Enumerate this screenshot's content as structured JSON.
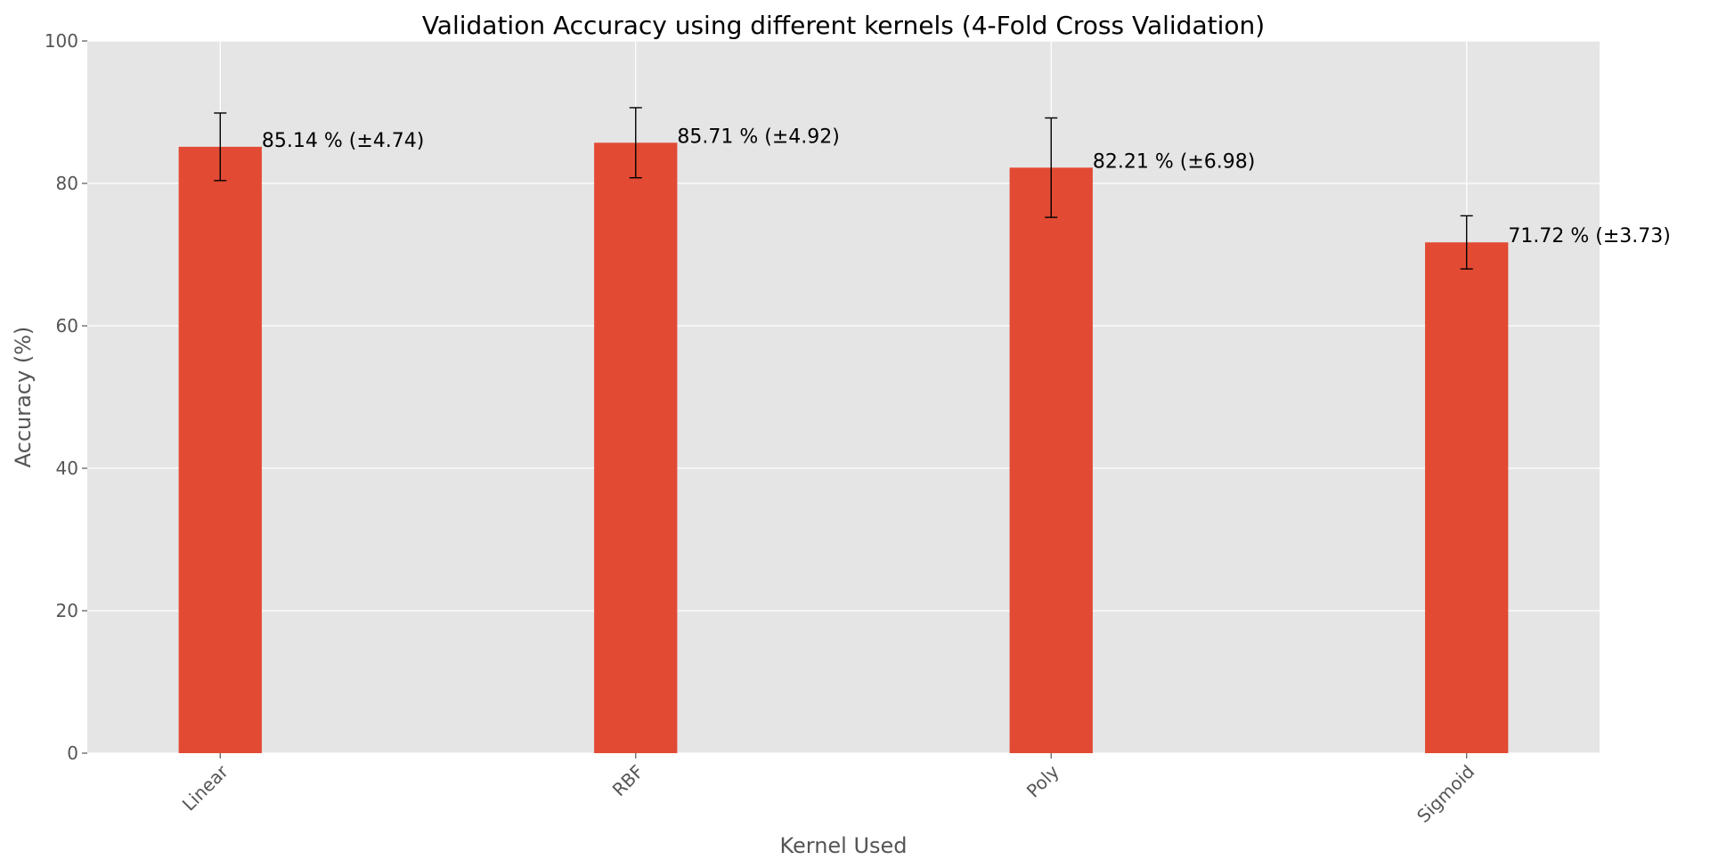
{
  "chart_data": {
    "type": "bar",
    "title": "Validation Accuracy using different kernels (4-Fold Cross Validation)",
    "xlabel": "Kernel Used",
    "ylabel": "Accuracy (%)",
    "categories": [
      "Linear",
      "RBF",
      "Poly",
      "Sigmoid"
    ],
    "values": [
      85.14,
      85.71,
      82.21,
      71.72
    ],
    "errors": [
      4.74,
      4.92,
      6.98,
      3.73
    ],
    "data_labels": [
      "85.14 % (±4.74)",
      "85.71 % (±4.92)",
      "82.21 % (±6.98)",
      "71.72 % (±3.73)"
    ],
    "ylim": [
      0,
      100
    ],
    "yticks": [
      0,
      20,
      40,
      60,
      80,
      100
    ],
    "grid": true,
    "colors": {
      "bar": "#e24a33",
      "plot_background": "#e5e5e5",
      "grid": "#ffffff"
    }
  }
}
